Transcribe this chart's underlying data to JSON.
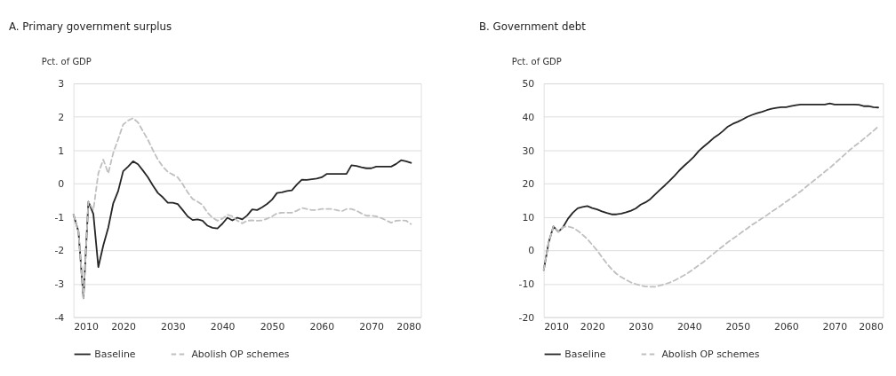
{
  "chart_data": [
    {
      "type": "line",
      "title": "A. Primary government surplus",
      "ylabel": "Pct. of GDP",
      "x": [
        2010,
        2011,
        2012,
        2013,
        2014,
        2015,
        2016,
        2017,
        2018,
        2019,
        2020,
        2021,
        2022,
        2023,
        2024,
        2025,
        2026,
        2027,
        2028,
        2029,
        2030,
        2031,
        2032,
        2033,
        2034,
        2035,
        2036,
        2037,
        2038,
        2039,
        2040,
        2041,
        2042,
        2043,
        2044,
        2045,
        2046,
        2047,
        2048,
        2049,
        2050,
        2051,
        2052,
        2053,
        2054,
        2055,
        2056,
        2057,
        2058,
        2059,
        2060,
        2061,
        2062,
        2063,
        2064,
        2065,
        2066,
        2067,
        2068,
        2069,
        2070,
        2071,
        2072,
        2073,
        2074,
        2075,
        2076,
        2077,
        2078
      ],
      "series": [
        {
          "name": "Baseline",
          "color": "#262626",
          "line_style": "solid",
          "values": [
            -0.93,
            -1.44,
            -3.43,
            -0.54,
            -0.91,
            -2.5,
            -1.85,
            -1.32,
            -0.59,
            -0.22,
            0.37,
            0.51,
            0.67,
            0.58,
            0.39,
            0.19,
            -0.06,
            -0.28,
            -0.41,
            -0.57,
            -0.57,
            -0.61,
            -0.79,
            -0.98,
            -1.09,
            -1.07,
            -1.11,
            -1.26,
            -1.32,
            -1.34,
            -1.2,
            -1.02,
            -1.1,
            -1.02,
            -1.07,
            -0.95,
            -0.77,
            -0.79,
            -0.71,
            -0.61,
            -0.48,
            -0.28,
            -0.26,
            -0.22,
            -0.2,
            -0.03,
            0.12,
            0.11,
            0.13,
            0.15,
            0.19,
            0.29,
            0.29,
            0.29,
            0.29,
            0.29,
            0.55,
            0.53,
            0.49,
            0.46,
            0.46,
            0.51,
            0.51,
            0.51,
            0.51,
            0.59,
            0.7,
            0.67,
            0.62
          ]
        },
        {
          "name": "Abolish OP schemes",
          "color": "#c0c0c0",
          "line_style": "dashed",
          "values": [
            -0.93,
            -1.44,
            -3.43,
            -0.54,
            -0.79,
            0.31,
            0.72,
            0.31,
            0.92,
            1.33,
            1.77,
            1.89,
            1.96,
            1.83,
            1.57,
            1.31,
            1.0,
            0.72,
            0.51,
            0.35,
            0.27,
            0.19,
            -0.02,
            -0.26,
            -0.46,
            -0.54,
            -0.64,
            -0.87,
            -1.02,
            -1.11,
            -1.05,
            -0.93,
            -0.98,
            -1.11,
            -1.19,
            -1.11,
            -1.1,
            -1.11,
            -1.1,
            -1.05,
            -0.98,
            -0.89,
            -0.87,
            -0.87,
            -0.87,
            -0.81,
            -0.73,
            -0.76,
            -0.79,
            -0.79,
            -0.76,
            -0.76,
            -0.76,
            -0.79,
            -0.83,
            -0.76,
            -0.76,
            -0.81,
            -0.89,
            -0.96,
            -0.96,
            -0.98,
            -1.03,
            -1.1,
            -1.17,
            -1.11,
            -1.1,
            -1.11,
            -1.21
          ]
        }
      ],
      "xlim": [
        2010,
        2080
      ],
      "xticks": [
        2010,
        2020,
        2030,
        2040,
        2050,
        2060,
        2070,
        2080
      ],
      "ylim": [
        -4,
        3
      ],
      "yticks": [
        -4,
        -3,
        -2,
        -1,
        0,
        1,
        2,
        3
      ],
      "grid": "y",
      "legend": "bottom"
    },
    {
      "type": "line",
      "title": "B. Government debt",
      "ylabel": "Pct. of GDP",
      "x": [
        2010,
        2011,
        2012,
        2013,
        2014,
        2015,
        2016,
        2017,
        2018,
        2019,
        2020,
        2021,
        2022,
        2023,
        2024,
        2025,
        2026,
        2027,
        2028,
        2029,
        2030,
        2031,
        2032,
        2033,
        2034,
        2035,
        2036,
        2037,
        2038,
        2039,
        2040,
        2041,
        2042,
        2043,
        2044,
        2045,
        2046,
        2047,
        2048,
        2049,
        2050,
        2051,
        2052,
        2053,
        2054,
        2055,
        2056,
        2057,
        2058,
        2059,
        2060,
        2061,
        2062,
        2063,
        2064,
        2065,
        2066,
        2067,
        2068,
        2069,
        2070,
        2071,
        2072,
        2073,
        2074,
        2075,
        2076,
        2077,
        2078,
        2079
      ],
      "series": [
        {
          "name": "Baseline",
          "color": "#262626",
          "line_style": "solid",
          "values": [
            -5.9,
            2.3,
            7.2,
            5.6,
            7.0,
            9.5,
            11.3,
            12.6,
            13.0,
            13.3,
            12.7,
            12.3,
            11.7,
            11.2,
            10.8,
            10.8,
            11.0,
            11.4,
            11.9,
            12.6,
            13.7,
            14.4,
            15.4,
            16.8,
            18.2,
            19.5,
            20.9,
            22.4,
            24.0,
            25.4,
            26.7,
            28.1,
            29.8,
            31.1,
            32.3,
            33.6,
            34.6,
            35.8,
            37.1,
            37.9,
            38.5,
            39.2,
            40.0,
            40.6,
            41.1,
            41.5,
            42.0,
            42.4,
            42.7,
            42.9,
            42.9,
            43.2,
            43.5,
            43.7,
            43.7,
            43.7,
            43.7,
            43.7,
            43.7,
            44.0,
            43.7,
            43.7,
            43.7,
            43.7,
            43.7,
            43.6,
            43.2,
            43.2,
            42.9,
            42.8
          ]
        },
        {
          "name": "Abolish OP schemes",
          "color": "#c0c0c0",
          "line_style": "dashed",
          "values": [
            -5.9,
            2.3,
            7.2,
            5.6,
            7.0,
            7.2,
            6.8,
            5.9,
            4.7,
            3.4,
            1.7,
            0,
            -2.0,
            -3.9,
            -5.6,
            -7.0,
            -8.0,
            -8.8,
            -9.6,
            -10.1,
            -10.5,
            -10.8,
            -10.9,
            -10.9,
            -10.5,
            -10.1,
            -9.6,
            -9.0,
            -8.2,
            -7.4,
            -6.5,
            -5.5,
            -4.4,
            -3.4,
            -2.2,
            -1.0,
            0.2,
            1.3,
            2.5,
            3.5,
            4.5,
            5.6,
            6.6,
            7.7,
            8.6,
            9.6,
            10.5,
            11.6,
            12.5,
            13.5,
            14.6,
            15.6,
            16.6,
            17.7,
            18.9,
            20.1,
            21.2,
            22.4,
            23.6,
            24.7,
            26.0,
            27.3,
            28.6,
            29.9,
            31.1,
            32.2,
            33.4,
            34.6,
            35.8,
            37.1
          ]
        }
      ],
      "xlim": [
        2010,
        2080
      ],
      "xticks": [
        2010,
        2020,
        2030,
        2040,
        2050,
        2060,
        2070,
        2080
      ],
      "ylim": [
        -20,
        50
      ],
      "yticks": [
        -20,
        -10,
        0,
        10,
        20,
        30,
        40,
        50
      ],
      "grid": "y",
      "legend": "bottom"
    }
  ]
}
